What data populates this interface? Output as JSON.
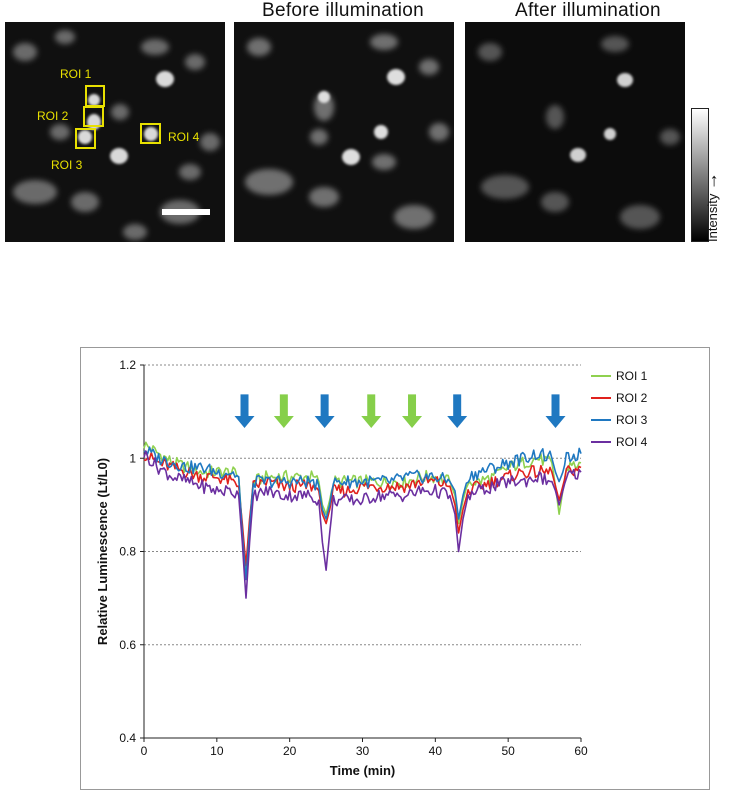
{
  "images": {
    "panel2_title": "Before illumination",
    "panel3_title": "After illumination",
    "roi_labels": [
      "ROI 1",
      "ROI 2",
      "ROI 3",
      "ROI 4"
    ],
    "colorbar_label": "Intensity",
    "colorbar_arrow": "→",
    "roi_color": "#e8e000"
  },
  "chart_data": {
    "type": "line",
    "title": "",
    "xlabel": "Time (min)",
    "ylabel": "Relative Luminescence (Lt/L0)",
    "xlim": [
      0,
      60
    ],
    "ylim": [
      0.4,
      1.2
    ],
    "xticks": [
      0,
      10,
      20,
      30,
      40,
      50,
      60
    ],
    "yticks": [
      0.4,
      0.6,
      0.8,
      1,
      1.2
    ],
    "ytick_labels": [
      "0.4",
      "0.6",
      "0.8",
      "1",
      "1.2"
    ],
    "grid": "horizontal dotted",
    "legend": "right",
    "arrows": [
      {
        "x": 13.8,
        "color": "#1f78c1"
      },
      {
        "x": 19.2,
        "color": "#86cf4a"
      },
      {
        "x": 24.8,
        "color": "#1f78c1"
      },
      {
        "x": 31.2,
        "color": "#86cf4a"
      },
      {
        "x": 36.8,
        "color": "#86cf4a"
      },
      {
        "x": 43.0,
        "color": "#1f78c1"
      },
      {
        "x": 56.5,
        "color": "#1f78c1"
      }
    ],
    "series": [
      {
        "name": "ROI 1",
        "color": "#8fd14f",
        "x": [
          0,
          2,
          4,
          6,
          8,
          10,
          12,
          13,
          13.5,
          14,
          14.5,
          15,
          17,
          19,
          21,
          23,
          24,
          24.5,
          25,
          25.5,
          26,
          28,
          30,
          32,
          34,
          36,
          38,
          40,
          42,
          42.7,
          43.2,
          43.8,
          44.5,
          46,
          48,
          50,
          52,
          54,
          56,
          56.5,
          57,
          57.5,
          58,
          60
        ],
        "y": [
          1.03,
          1.01,
          0.99,
          0.98,
          0.97,
          0.97,
          0.97,
          0.96,
          0.85,
          0.76,
          0.86,
          0.95,
          0.96,
          0.96,
          0.96,
          0.96,
          0.95,
          0.9,
          0.88,
          0.91,
          0.95,
          0.95,
          0.95,
          0.95,
          0.95,
          0.95,
          0.96,
          0.96,
          0.95,
          0.92,
          0.86,
          0.91,
          0.95,
          0.95,
          0.96,
          0.98,
          0.99,
          1.0,
          0.99,
          0.94,
          0.88,
          0.93,
          0.98,
          0.99
        ]
      },
      {
        "name": "ROI 2",
        "color": "#e0211d",
        "x": [
          0,
          2,
          4,
          6,
          8,
          10,
          12,
          13,
          13.5,
          14,
          14.5,
          15,
          17,
          19,
          21,
          23,
          24,
          24.5,
          25,
          25.5,
          26,
          28,
          30,
          32,
          34,
          36,
          38,
          40,
          42,
          42.7,
          43.2,
          43.8,
          44.5,
          46,
          48,
          50,
          52,
          54,
          56,
          56.5,
          57,
          57.5,
          58,
          60
        ],
        "y": [
          1.01,
          0.99,
          0.98,
          0.97,
          0.96,
          0.96,
          0.95,
          0.94,
          0.86,
          0.77,
          0.87,
          0.94,
          0.95,
          0.94,
          0.94,
          0.94,
          0.93,
          0.88,
          0.86,
          0.89,
          0.93,
          0.93,
          0.94,
          0.94,
          0.94,
          0.94,
          0.95,
          0.95,
          0.94,
          0.9,
          0.84,
          0.89,
          0.93,
          0.94,
          0.95,
          0.96,
          0.97,
          0.97,
          0.97,
          0.94,
          0.91,
          0.94,
          0.97,
          0.98
        ]
      },
      {
        "name": "ROI 3",
        "color": "#1f78c1",
        "x": [
          0,
          2,
          4,
          6,
          8,
          10,
          12,
          13,
          13.5,
          14,
          14.5,
          15,
          17,
          19,
          21,
          23,
          24,
          24.5,
          25,
          25.5,
          26,
          28,
          30,
          32,
          34,
          36,
          38,
          40,
          42,
          42.7,
          43.2,
          43.8,
          44.5,
          46,
          48,
          50,
          52,
          54,
          56,
          56.5,
          57,
          57.5,
          58,
          60
        ],
        "y": [
          1.02,
          1.0,
          0.99,
          0.98,
          0.98,
          0.97,
          0.97,
          0.96,
          0.84,
          0.74,
          0.85,
          0.95,
          0.95,
          0.95,
          0.95,
          0.95,
          0.94,
          0.89,
          0.87,
          0.9,
          0.95,
          0.95,
          0.95,
          0.95,
          0.95,
          0.96,
          0.96,
          0.96,
          0.95,
          0.93,
          0.87,
          0.92,
          0.96,
          0.97,
          0.98,
          0.99,
          1.0,
          1.01,
          1.0,
          0.97,
          0.95,
          0.97,
          1.0,
          1.01
        ]
      },
      {
        "name": "ROI 4",
        "color": "#6b2fa0",
        "x": [
          0,
          2,
          4,
          6,
          8,
          10,
          12,
          13,
          13.5,
          14,
          14.5,
          15,
          17,
          19,
          21,
          23,
          24,
          24.5,
          25,
          25.5,
          26,
          28,
          30,
          32,
          34,
          36,
          38,
          40,
          42,
          42.7,
          43.2,
          43.8,
          44.5,
          46,
          48,
          50,
          52,
          54,
          56,
          56.5,
          57,
          57.5,
          58,
          60
        ],
        "y": [
          1.01,
          0.98,
          0.96,
          0.95,
          0.94,
          0.93,
          0.93,
          0.92,
          0.82,
          0.7,
          0.82,
          0.92,
          0.93,
          0.92,
          0.92,
          0.92,
          0.91,
          0.82,
          0.76,
          0.84,
          0.91,
          0.91,
          0.91,
          0.92,
          0.92,
          0.92,
          0.93,
          0.93,
          0.92,
          0.88,
          0.8,
          0.87,
          0.92,
          0.93,
          0.94,
          0.95,
          0.95,
          0.96,
          0.95,
          0.93,
          0.9,
          0.93,
          0.96,
          0.97
        ]
      }
    ]
  }
}
